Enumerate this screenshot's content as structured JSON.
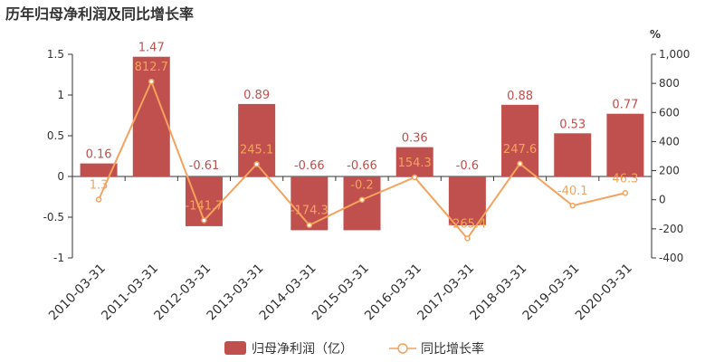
{
  "title": "历年归母净利润及同比增长率",
  "colors": {
    "bar": "#c0504d",
    "line": "#f5a25d",
    "bar_label": "#c0504d",
    "line_label": "#f5a25d"
  },
  "chart_data": {
    "type": "bar",
    "title": "历年归母净利润及同比增长率",
    "categories": [
      "2010-03-31",
      "2011-03-31",
      "2012-03-31",
      "2013-03-31",
      "2014-03-31",
      "2015-03-31",
      "2016-03-31",
      "2017-03-31",
      "2018-03-31",
      "2019-03-31",
      "2020-03-31"
    ],
    "series": [
      {
        "name": "归母净利润（亿）",
        "type": "bar",
        "axis": "left",
        "values": [
          0.16,
          1.47,
          -0.61,
          0.89,
          -0.66,
          -0.66,
          0.36,
          -0.6,
          0.88,
          0.53,
          0.77
        ],
        "labels": [
          "0.16",
          "1.47",
          "-0.61",
          "0.89",
          "-0.66",
          "-0.66",
          "0.36",
          "-0.6",
          "0.88",
          "0.53",
          "0.77"
        ]
      },
      {
        "name": "同比增长率",
        "type": "line",
        "axis": "right",
        "values": [
          1.3,
          812.7,
          -141.7,
          245.1,
          -174.3,
          -0.2,
          154.3,
          -265.4,
          247.6,
          -40.1,
          46.3
        ],
        "labels": [
          "1.3",
          "812.7",
          "-141.7",
          "245.1",
          "-174.3",
          "-0.2",
          "154.3",
          "-265.4",
          "247.6",
          "-40.1",
          "46.3"
        ]
      }
    ],
    "yleft": {
      "lim": [
        -1,
        1.5
      ],
      "ticks": [
        "-1",
        "-0.5",
        "0",
        "0.5",
        "1",
        "1.5"
      ],
      "tick_values": [
        -1,
        -0.5,
        0,
        0.5,
        1,
        1.5
      ]
    },
    "yright": {
      "lim": [
        -400,
        1000
      ],
      "unit": "%",
      "ticks": [
        "-400",
        "-200",
        "0",
        "200",
        "400",
        "600",
        "800",
        "1,000"
      ],
      "tick_values": [
        -400,
        -200,
        0,
        200,
        400,
        600,
        800,
        1000
      ]
    },
    "grid": false,
    "legend": "bottom"
  }
}
